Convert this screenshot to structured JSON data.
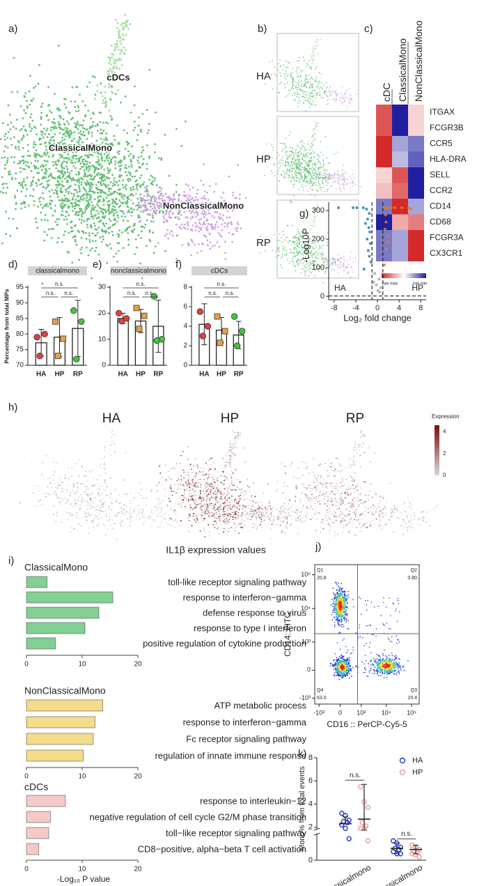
{
  "panels": [
    "a)",
    "b)",
    "c)",
    "d)",
    "e)",
    "f)",
    "g)",
    "h)",
    "i)",
    "j)",
    "k)"
  ],
  "umap": {
    "clusters": [
      "cDCs",
      "ClassicalMono",
      "NonClassicalMono"
    ],
    "colors": [
      "#a6dca0",
      "#66c077",
      "#cfa6e2"
    ]
  },
  "conditions": [
    "HA",
    "HP",
    "RP"
  ],
  "expression": {
    "title": "Expression",
    "caption": "IL1β expression values",
    "lim": [
      0,
      4.6
    ],
    "ticks": [
      0,
      2,
      4
    ],
    "colors": [
      "#d9d9d9",
      "#7f0a0a"
    ]
  },
  "chart_data": [
    {
      "type": "heatmap",
      "columns": [
        "cDC",
        "ClassicalMono",
        "NonClassicalMono"
      ],
      "rows": [
        "ITGAX",
        "FCGR3B",
        "CCR5",
        "HLA-DRA",
        "SELL",
        "CCR2",
        "CD14",
        "CD68",
        "FCGR3A",
        "CX3CR1"
      ],
      "values": [
        [
          0.8,
          -1,
          0.2
        ],
        [
          0.8,
          -1,
          0.2
        ],
        [
          1,
          -0.4,
          -0.6
        ],
        [
          1,
          -0.3,
          -0.7
        ],
        [
          0.2,
          0.8,
          -1
        ],
        [
          0.3,
          0.7,
          -1
        ],
        [
          -0.6,
          1,
          -0.4
        ],
        [
          -1,
          0.4,
          0.6
        ],
        [
          -0.6,
          -0.4,
          1
        ],
        [
          -0.6,
          -0.4,
          1
        ]
      ],
      "legend": [
        "row max",
        "row min"
      ],
      "colors": [
        "#d42a2a",
        "#ffffff",
        "#1f1fa0"
      ]
    },
    {
      "type": "bar",
      "title": "classicalmono",
      "ylabel": "Percentage from total MPs",
      "categories": [
        "HA",
        "HP",
        "RP"
      ],
      "values": [
        77.2,
        79,
        81.8
      ],
      "errors": [
        4.3,
        6.3,
        9
      ],
      "points": [
        [
          79,
          80,
          73
        ],
        [
          84,
          78.5,
          73
        ],
        [
          87.5,
          84,
          72
        ]
      ],
      "point_colors": [
        "#e04040",
        "#e8a040",
        "#44c444"
      ],
      "markers": [
        "circle",
        "square",
        "circle"
      ],
      "ylim": [
        70,
        95
      ],
      "yticks": [
        70,
        75,
        80,
        85,
        90,
        95
      ],
      "annotations": [
        "n.s.",
        "n.s.",
        "n.s."
      ]
    },
    {
      "type": "bar",
      "title": "nonclassicalmono",
      "categories": [
        "HA",
        "HP",
        "RP"
      ],
      "values": [
        18,
        17,
        15
      ],
      "errors": [
        2,
        4.5,
        10
      ],
      "points": [
        [
          20,
          18,
          17
        ],
        [
          22,
          19,
          14
        ],
        [
          26.5,
          10,
          9.5
        ]
      ],
      "point_colors": [
        "#e04040",
        "#e8a040",
        "#44c444"
      ],
      "markers": [
        "circle",
        "square",
        "circle"
      ],
      "ylim": [
        0,
        30
      ],
      "yticks": [
        0,
        10,
        20,
        30
      ],
      "annotations": [
        "n.s.",
        "n.s.",
        "n.s."
      ]
    },
    {
      "type": "bar",
      "title": "cDCs",
      "categories": [
        "HA",
        "HP",
        "RP"
      ],
      "values": [
        4.2,
        3.6,
        3.1
      ],
      "errors": [
        2.1,
        1.3,
        1.4
      ],
      "points": [
        [
          5.5,
          4,
          3
        ],
        [
          5,
          3.5,
          2.3
        ],
        [
          5,
          3.5,
          2
        ]
      ],
      "point_colors": [
        "#e04040",
        "#e8a040",
        "#44c444"
      ],
      "markers": [
        "circle",
        "square",
        "circle"
      ],
      "ylim": [
        0,
        8
      ],
      "yticks": [
        0,
        2,
        4,
        6,
        8
      ],
      "annotations": [
        "n.s.",
        "n.s.",
        "n.s."
      ]
    },
    {
      "type": "volcano",
      "xlabel": "Log₂ fold change",
      "ylabel": "-Log10P",
      "annotations": [
        "HA",
        "HP"
      ],
      "x": [
        -7.2,
        -4.5,
        -3.8,
        -2.6,
        -2,
        -1.5,
        -1.8,
        -2.2,
        -1.6,
        -1.4,
        -1.9,
        -1.3,
        -1.7,
        -1.5,
        -1.2,
        -2.5,
        1.3,
        1.8,
        2.5,
        3.2,
        4.5,
        5.8,
        6.2,
        1.5,
        1.6,
        1.4,
        2.1,
        1.9,
        1.7,
        1.3,
        -0.5,
        0.3,
        -0.2,
        0.6,
        0.1,
        -0.7,
        0.4
      ],
      "y": [
        310,
        310,
        310,
        310,
        305,
        290,
        270,
        255,
        240,
        225,
        200,
        185,
        160,
        140,
        120,
        95,
        310,
        310,
        310,
        310,
        310,
        310,
        305,
        285,
        260,
        235,
        210,
        190,
        165,
        110,
        80,
        60,
        40,
        30,
        20,
        50,
        15
      ],
      "colors": [
        "#2c7bb6",
        "#a8a8a8",
        "#e07b2c"
      ],
      "vlines": [
        -1,
        1
      ],
      "hline": 1.3,
      "xlim": [
        -9,
        9
      ],
      "xticks": [
        -8,
        -4,
        0,
        4,
        8
      ],
      "ylim": [
        -12,
        305
      ],
      "yticks": [
        0,
        100,
        200,
        300
      ]
    },
    {
      "type": "hbar",
      "title": "ClassicalMono",
      "color": "#82d094",
      "categories": [
        "toll-like receptor signaling pathway",
        "response to interferon−gamma",
        "defense response to virus",
        "response to type I interferon",
        "positive regulation of cytokine production"
      ],
      "values": [
        3.7,
        15.5,
        13,
        10.5,
        5.2
      ],
      "xlim": [
        0,
        20
      ],
      "xticks": [
        0,
        10,
        20
      ]
    },
    {
      "type": "hbar",
      "title": "NonClassicalMono",
      "color": "#f3dc8a",
      "categories": [
        "ATP metabolic process",
        "response to interferon−gamma",
        "Fc receptor signaling pathway",
        "regulation of innate immune response"
      ],
      "values": [
        13.7,
        12.3,
        12,
        10.2
      ],
      "xlim": [
        0,
        20
      ],
      "xticks": [
        0,
        10,
        20
      ]
    },
    {
      "type": "hbar",
      "title": "cDCs",
      "color": "#f6c9c9",
      "xlabel": "-Log₁₀ P value",
      "categories": [
        "response to interleukin−12",
        "negative regulation of cell cycle G2/M phase transition",
        "toll−like receptor signaling pathway",
        "CD8−positive, alpha−beta T cell activation"
      ],
      "values": [
        7,
        4.3,
        4,
        2.2
      ],
      "xlim": [
        0,
        20
      ],
      "xticks": [
        0,
        10,
        20
      ]
    },
    {
      "type": "flow",
      "xlabel": "CD16 :: PerCP-Cy5-5",
      "ylabel": "CD14::FITC",
      "quadrants": [
        "Q1",
        "Q2",
        "Q3",
        "Q4"
      ],
      "values": [
        20.8,
        0.8,
        15.4,
        63
      ],
      "value_labels": [
        "20.8",
        "0.80",
        "15.4",
        "63.0"
      ],
      "gate": [
        700,
        1800
      ],
      "xlim": [
        -1500,
        200000
      ],
      "ylim": [
        -1500,
        200000
      ],
      "xticks": [
        {
          "value": -1000,
          "label": "-10³"
        },
        0,
        {
          "value": 1000,
          "label": "10³"
        },
        {
          "value": 10000,
          "label": "10⁴"
        },
        {
          "value": 100000,
          "label": "10⁵"
        }
      ],
      "yticks": [
        {
          "value": -1000,
          "label": "-10³"
        },
        0,
        {
          "value": 1000,
          "label": "10³"
        },
        {
          "value": 10000,
          "label": "10⁴"
        },
        {
          "value": 100000,
          "label": "10⁵"
        }
      ]
    },
    {
      "type": "dot",
      "ylabel": "Mono% from total events",
      "categories": [
        "classicalmono",
        "nonclassicalmono"
      ],
      "series": [
        {
          "name": "HA",
          "color": "#2436c4",
          "values": [
            2.3,
            0.55
          ],
          "errors": [
            [
              0.6,
              0.6
            ],
            [
              0.25,
              0.25
            ]
          ],
          "points": [
            [
              3.2,
              3,
              2.6,
              2.5,
              2.4,
              2.2,
              1.9,
              1.0
            ],
            [
              0.9,
              0.8,
              0.6,
              0.55,
              0.5,
              0.4,
              0.3,
              0.3
            ]
          ]
        },
        {
          "name": "HP",
          "color": "#e89a9a",
          "values": [
            2.7,
            0.5
          ],
          "errors": [
            [
              1.3,
              3.0
            ],
            [
              0.2,
              0.2
            ]
          ],
          "points": [
            [
              5.5,
              4.2,
              3.7,
              2.4,
              2.1,
              1.9,
              1.5,
              0.9
            ],
            [
              0.7,
              0.6,
              0.5,
              0.4,
              0.35,
              0.3,
              0.25,
              0.15
            ]
          ]
        }
      ],
      "ylim": [
        0,
        8
      ],
      "yticks": [
        0,
        2,
        4,
        6,
        8
      ],
      "ybreak": [
        1.2,
        1.8
      ],
      "annotations": [
        "n.s.",
        "n.s."
      ]
    }
  ]
}
